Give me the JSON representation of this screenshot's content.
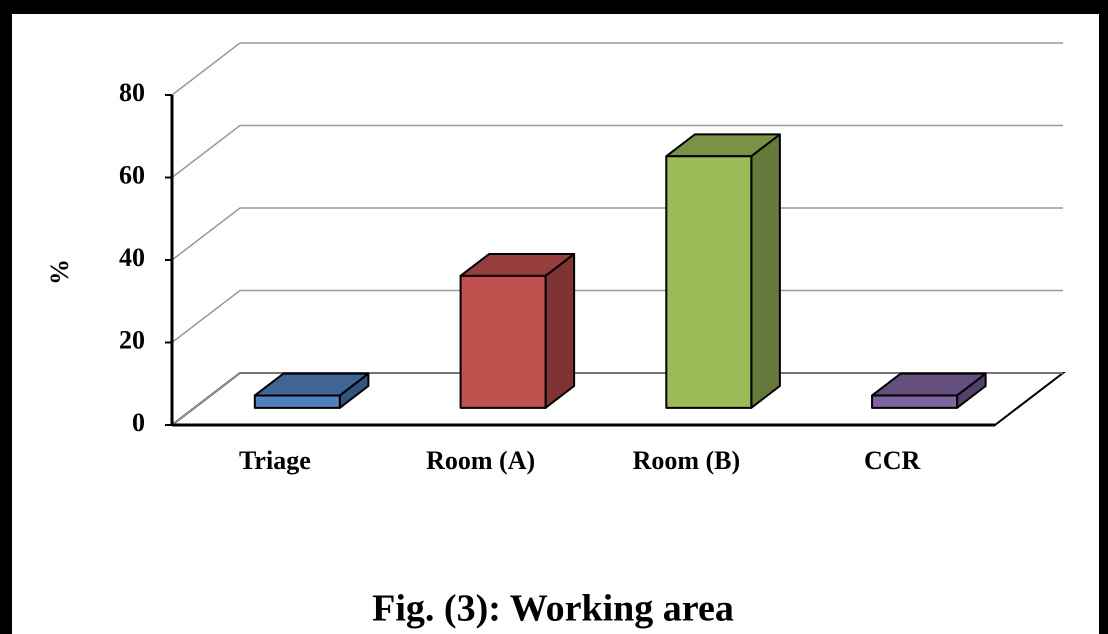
{
  "chart_data": {
    "type": "bar3d",
    "title": "Fig. (3): Working area",
    "y_label": "%",
    "categories": [
      "Triage",
      "Room (A)",
      "Room (B)",
      "CCR"
    ],
    "values": [
      3,
      32,
      61,
      3
    ],
    "colors": [
      "#4f81bd",
      "#c0504d",
      "#9bbb59",
      "#8064a2"
    ],
    "ylim": [
      0,
      80
    ],
    "yticks": [
      0,
      20,
      40,
      60,
      80
    ],
    "grid": true
  }
}
